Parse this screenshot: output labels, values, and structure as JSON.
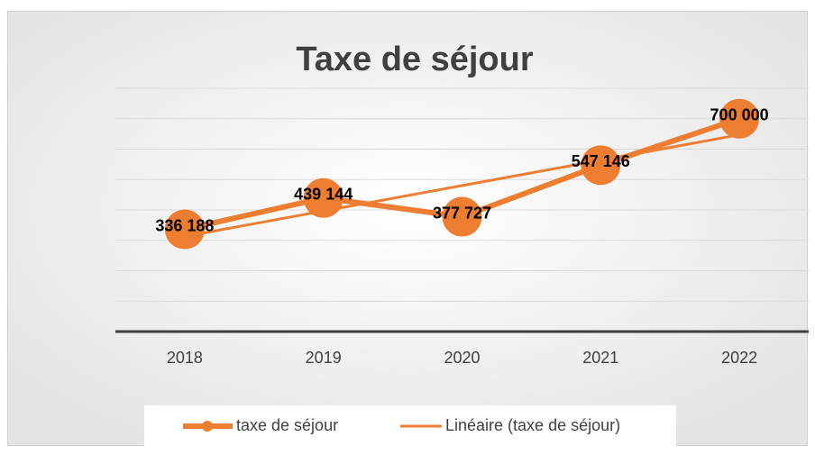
{
  "chart_data": {
    "type": "line",
    "title": "Taxe de séjour",
    "categories": [
      "2018",
      "2019",
      "2020",
      "2021",
      "2022"
    ],
    "series": [
      {
        "name": "taxe de séjour",
        "color": "#ed7d31",
        "values": [
          336188,
          439144,
          377727,
          547146,
          700000
        ],
        "value_labels": [
          "336 188",
          "439 144",
          "377 727",
          "547 146",
          "700 000"
        ]
      }
    ],
    "trendline": {
      "name": "Linéaire (taxe de séjour)",
      "type": "linear",
      "color": "#ed7d31"
    },
    "ylim": [
      0,
      800000
    ],
    "yticks": [
      0,
      100000,
      200000,
      300000,
      400000,
      500000,
      600000,
      700000,
      800000
    ],
    "grid": true,
    "legend": "bottom"
  }
}
